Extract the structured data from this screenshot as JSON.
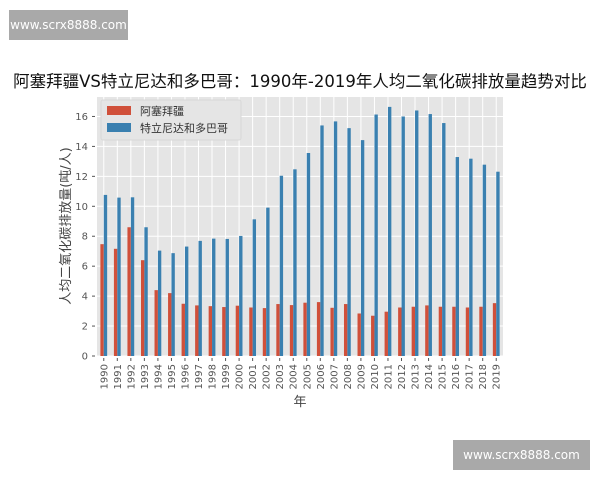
{
  "watermarks": [
    "www.scrx8888.com",
    "www.scrx8888.com"
  ],
  "chart_data": {
    "type": "bar",
    "title": "阿塞拜疆VS特立尼达和多巴哥：1990年-2019年人均二氧化碳排放量趋势对比",
    "xlabel": "年",
    "ylabel": "人均二氧化碳排放量(吨/人)",
    "ylim": [
      0,
      17.3
    ],
    "yticks": [
      0,
      2,
      4,
      6,
      8,
      10,
      12,
      14,
      16
    ],
    "grid": true,
    "legend_position": "top-left",
    "categories": [
      "1990",
      "1991",
      "1992",
      "1993",
      "1994",
      "1995",
      "1996",
      "1997",
      "1998",
      "1999",
      "2000",
      "2001",
      "2002",
      "2003",
      "2004",
      "2005",
      "2006",
      "2007",
      "2008",
      "2009",
      "2010",
      "2011",
      "2012",
      "2013",
      "2014",
      "2015",
      "2016",
      "2017",
      "2018",
      "2019"
    ],
    "series": [
      {
        "name": "阿塞拜疆",
        "color": "#d0503a",
        "values": [
          7.47,
          7.16,
          8.6,
          6.4,
          4.4,
          4.2,
          3.49,
          3.38,
          3.33,
          3.27,
          3.36,
          3.24,
          3.2,
          3.47,
          3.4,
          3.56,
          3.6,
          3.22,
          3.47,
          2.84,
          2.69,
          2.96,
          3.24,
          3.29,
          3.38,
          3.29,
          3.29,
          3.24,
          3.29,
          3.53
        ]
      },
      {
        "name": "特立尼达和多巴哥",
        "color": "#3a80b0",
        "values": [
          10.76,
          10.58,
          10.6,
          8.6,
          7.04,
          6.87,
          7.31,
          7.69,
          7.84,
          7.82,
          8.02,
          9.13,
          9.91,
          12.04,
          12.47,
          13.56,
          15.4,
          15.67,
          15.22,
          14.42,
          16.13,
          16.64,
          16.0,
          16.4,
          16.16,
          15.56,
          13.29,
          13.18,
          12.78,
          12.31
        ]
      }
    ]
  }
}
